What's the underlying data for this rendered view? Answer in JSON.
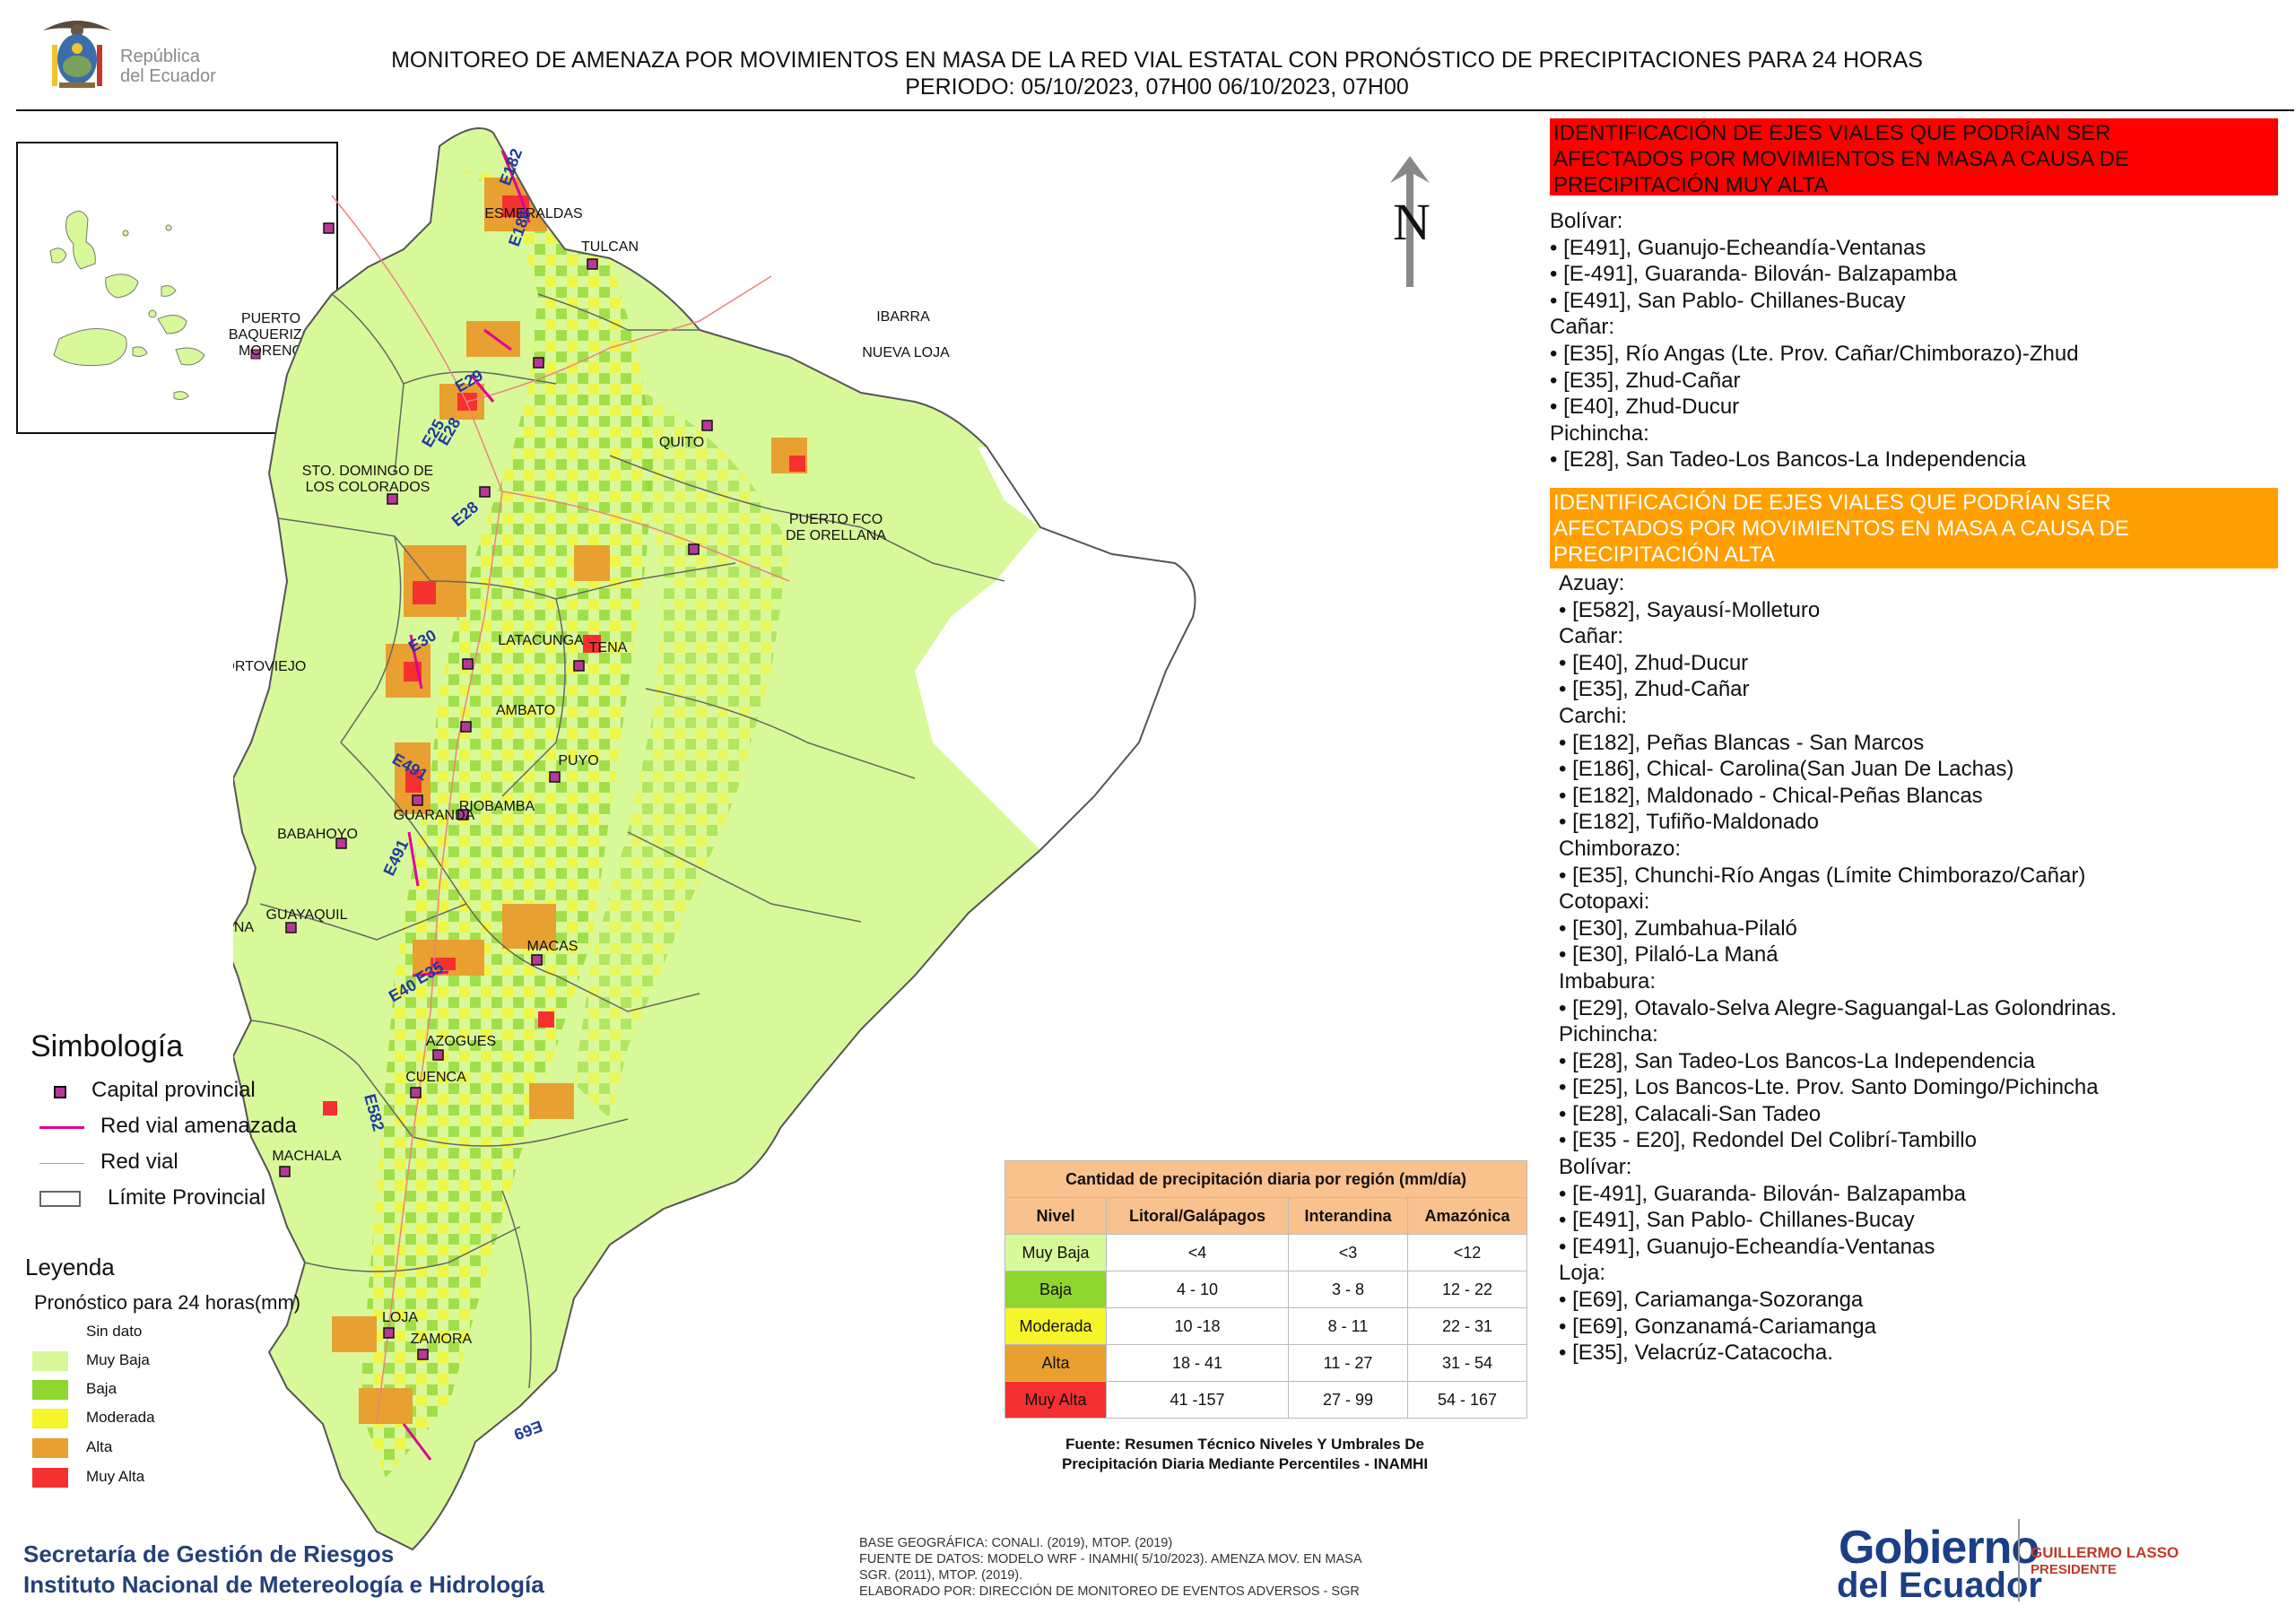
{
  "header": {
    "title_line1": "MONITOREO DE AMENAZA POR MOVIMIENTOS EN MASA DE LA RED VIAL  ESTATAL  CON PRONÓSTICO  DE  PRECIPITACIONES PARA 24 HORAS",
    "title_line2": "PERIODO: 05/10/2023, 07H00 06/10/2023, 07H00",
    "crest_line1": "República",
    "crest_line2": "del Ecuador"
  },
  "colors": {
    "muy_baja": "#d8f99a",
    "baja": "#8fd630",
    "moderada": "#f5f52a",
    "alta": "#e8a030",
    "muy_alta": "#f53030",
    "capital": "#b8379a",
    "red_amenazada": "#e0009a",
    "red_vial": "#f08080",
    "red_banner": "#ff0000",
    "orange_banner": "#ffa000"
  },
  "map": {
    "north_label": "N",
    "cities": [
      "ESMERALDAS",
      "TULCAN",
      "IBARRA",
      "NUEVA LOJA",
      "STO. DOMINGO DE",
      "LOS COLORADOS",
      "QUITO",
      "PUERTO FCO",
      "DE ORELLANA",
      "PORTOVIEJO",
      "LATACUNGA",
      "TENA",
      "AMBATO",
      "PUYO",
      "GUARANDA",
      "RIOBAMBA",
      "BABAHOYO",
      "SANTA ELENA",
      "GUAYAQUIL",
      "MACAS",
      "AZOGUES",
      "CUENCA",
      "MACHALA",
      "LOJA",
      "ZAMORA"
    ],
    "inset_cities": [
      "PUERTO",
      "BAQUERIZO",
      "MORENO"
    ],
    "road_labels": [
      "E182",
      "E186",
      "E29",
      "E28",
      "E25",
      "E28",
      "E30",
      "E491",
      "E491",
      "E40",
      "E35",
      "E582",
      "E69"
    ]
  },
  "risk_muy_alta": {
    "banner": [
      "IDENTIFICACIÓN DE EJES VIALES QUE PODRÍAN SER",
      "AFECTADOS POR MOVIMIENTOS EN MASA A CAUSA DE",
      "PRECIPITACIÓN MUY ALTA"
    ],
    "lines": [
      "Bolívar:",
      "• [E491], Guanujo-Echeandía-Ventanas",
      "• [E-491], Guaranda- Bilován- Balzapamba",
      "• [E491], San Pablo- Chillanes-Bucay",
      "Cañar:",
      "• [E35], Río Angas (Lte. Prov. Cañar/Chimborazo)-Zhud",
      "• [E35], Zhud-Cañar",
      "• [E40], Zhud-Ducur",
      "Pichincha:",
      "• [E28], San Tadeo-Los Bancos-La Independencia"
    ]
  },
  "risk_alta": {
    "banner": [
      "IDENTIFICACIÓN DE EJES VIALES QUE PODRÍAN SER",
      "AFECTADOS POR MOVIMIENTOS EN MASA A CAUSA DE",
      "PRECIPITACIÓN  ALTA"
    ],
    "lines": [
      "Azuay:",
      "• [E582], Sayausí-Molleturo",
      "Cañar:",
      "• [E40], Zhud-Ducur",
      "• [E35], Zhud-Cañar",
      "Carchi:",
      "• [E182], Peñas Blancas - San Marcos",
      "• [E186], Chical- Carolina(San Juan De Lachas)",
      "• [E182], Maldonado - Chical-Peñas Blancas",
      "• [E182], Tufiño-Maldonado",
      "Chimborazo:",
      "• [E35], Chunchi-Río Angas (Límite Chimborazo/Cañar)",
      "Cotopaxi:",
      "• [E30], Zumbahua-Pilaló",
      "• [E30], Pilaló-La Maná",
      "Imbabura:",
      "• [E29], Otavalo-Selva Alegre-Saguangal-Las Golondrinas.",
      "Pichincha:",
      "• [E28], San Tadeo-Los Bancos-La Independencia",
      "• [E25], Los Bancos-Lte. Prov. Santo Domingo/Pichincha",
      "• [E28], Calacali-San Tadeo",
      "• [E35 - E20], Redondel Del Colibrí-Tambillo",
      "Bolívar:",
      "• [E-491], Guaranda- Bilován- Balzapamba",
      "• [E491], San Pablo- Chillanes-Bucay",
      "• [E491], Guanujo-Echeandía-Ventanas",
      "Loja:",
      "• [E69], Cariamanga-Sozoranga",
      "• [E69], Gonzanamá-Cariamanga",
      "• [E35], Velacrúz-Catacocha."
    ]
  },
  "simbologia": {
    "title": "Simbología",
    "capital": "Capital provincial",
    "red_amenazada": "Red vial amenazada",
    "red_vial": "Red vial",
    "limite": "Límite Provincial"
  },
  "leyenda": {
    "title": "Leyenda",
    "subtitle": "Pronóstico para 24 horas(mm)",
    "items": [
      "Sin dato",
      "Muy Baja",
      "Baja",
      "Moderada",
      "Alta",
      "Muy Alta"
    ]
  },
  "precip_table": {
    "title": "Cantidad de precipitación diaria por región (mm/día)",
    "headers": [
      "Nivel",
      "Litoral/Galápagos",
      "Interandina",
      "Amazónica"
    ],
    "rows": [
      [
        "Muy Baja",
        "<4",
        "<3",
        "<12"
      ],
      [
        "Baja",
        "4 - 10",
        "3 - 8",
        "12 - 22"
      ],
      [
        "Moderada",
        "10 -18",
        "8 - 11",
        "22 - 31"
      ],
      [
        "Alta",
        "18 - 41",
        "11 - 27",
        "31 - 54"
      ],
      [
        "Muy Alta",
        "41 -157",
        "27 - 99",
        "54 - 167"
      ]
    ],
    "source_line1": "Fuente: Resumen Técnico Niveles Y Umbrales De",
    "source_line2": "Precipitación Diaria Mediante Percentiles - INAMHI"
  },
  "footer": {
    "org_line1": "Secretaría de Gestión de Riesgos",
    "org_line2": "Instituto Nacional de Metereología e Hidrología",
    "base_lines": [
      "BASE GEOGRÁFICA: CONALI. (2019), MTOP. (2019)",
      "FUENTE DE DATOS: MODELO WRF - INAMHI( 5/10/2023).  AMENZA MOV. EN MASA",
      "SGR. (2011), MTOP. (2019).",
      "ELABORADO POR: DIRECCIÓN DE MONITOREO DE EVENTOS ADVERSOS - SGR"
    ],
    "gob_line1": "Gobierno",
    "gob_line2": "del Ecuador",
    "pres_name": "GUILLERMO LASSO",
    "pres_title": "PRESIDENTE"
  }
}
